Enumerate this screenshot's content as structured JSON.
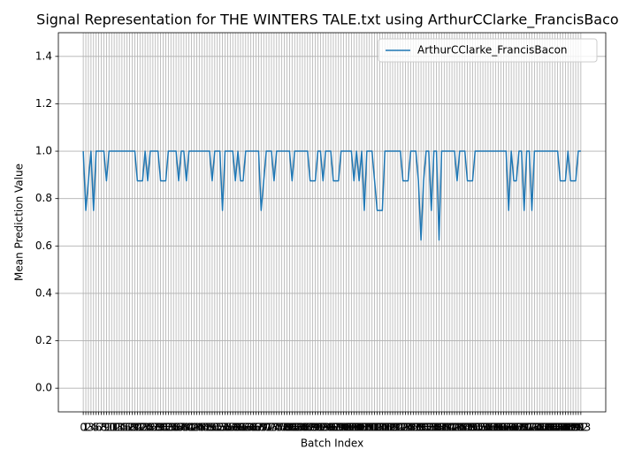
{
  "chart_data": {
    "type": "line",
    "title": "Signal Representation for THE WINTERS TALE.txt using ArthurCClarke_FrancisBacon",
    "xlabel": "Batch Index",
    "ylabel": "Mean Prediction Value",
    "categories": [
      "0",
      "1",
      "2",
      "3",
      "4",
      "5",
      "6",
      "7",
      "8",
      "9",
      "10",
      "11",
      "12",
      "13",
      "14",
      "15",
      "16",
      "17",
      "18",
      "19",
      "20",
      "21",
      "22",
      "23",
      "24",
      "25",
      "26",
      "27",
      "28",
      "29",
      "30",
      "31",
      "32",
      "33",
      "34",
      "35",
      "36",
      "37",
      "38",
      "39",
      "40",
      "41",
      "42",
      "43",
      "44",
      "45",
      "46",
      "47",
      "48",
      "49",
      "50",
      "51",
      "52",
      "53",
      "54",
      "55",
      "56",
      "57",
      "58",
      "59",
      "60",
      "61",
      "62",
      "63",
      "64",
      "65",
      "66",
      "67",
      "68",
      "69",
      "70",
      "71",
      "72",
      "73",
      "74",
      "75",
      "76",
      "77",
      "78",
      "79",
      "80",
      "81",
      "82",
      "83",
      "84",
      "85",
      "86",
      "87",
      "88",
      "89",
      "90",
      "91",
      "92",
      "93",
      "94",
      "95",
      "96",
      "97",
      "98",
      "99",
      "100",
      "101",
      "102",
      "103",
      "104",
      "105",
      "106",
      "107",
      "108",
      "109",
      "110",
      "111",
      "112",
      "113",
      "114",
      "115",
      "116",
      "117",
      "118",
      "119",
      "120",
      "121",
      "122",
      "123",
      "124",
      "125",
      "126",
      "127",
      "128",
      "129",
      "130",
      "131",
      "132",
      "133",
      "134",
      "135",
      "136",
      "137",
      "138",
      "139",
      "140",
      "141",
      "142",
      "143",
      "144",
      "145",
      "146",
      "147",
      "148",
      "149",
      "150",
      "151",
      "152",
      "153",
      "154",
      "155",
      "156",
      "157",
      "158",
      "159",
      "160",
      "161",
      "162",
      "163",
      "164",
      "165",
      "166",
      "167",
      "168",
      "169",
      "170",
      "171",
      "172",
      "173",
      "174",
      "175",
      "176",
      "177",
      "178",
      "179",
      "180",
      "181",
      "182",
      "183",
      "184",
      "185",
      "186",
      "187",
      "188",
      "189",
      "190",
      "191",
      "192",
      "193"
    ],
    "series": [
      {
        "name": "ArthurCClarke_FrancisBacon",
        "color": "#1f77b4",
        "values": [
          1,
          0.75,
          0.875,
          1,
          0.75,
          1,
          1,
          1,
          1,
          0.875,
          1,
          1,
          1,
          1,
          1,
          1,
          1,
          1,
          1,
          1,
          1,
          0.875,
          0.875,
          0.875,
          1,
          0.875,
          1,
          1,
          1,
          1,
          0.875,
          0.875,
          0.875,
          1,
          1,
          1,
          1,
          0.875,
          1,
          1,
          0.875,
          1,
          1,
          1,
          1,
          1,
          1,
          1,
          1,
          1,
          0.875,
          1,
          1,
          1,
          0.75,
          1,
          1,
          1,
          1,
          0.875,
          1,
          0.875,
          0.875,
          1,
          1,
          1,
          1,
          1,
          1,
          0.75,
          0.875,
          1,
          1,
          1,
          0.875,
          1,
          1,
          1,
          1,
          1,
          1,
          0.875,
          1,
          1,
          1,
          1,
          1,
          1,
          0.875,
          0.875,
          0.875,
          1,
          1,
          0.875,
          1,
          1,
          1,
          0.875,
          0.875,
          0.875,
          1,
          1,
          1,
          1,
          1,
          0.875,
          1,
          0.875,
          1,
          0.75,
          1,
          1,
          1,
          0.875,
          0.75,
          0.75,
          0.75,
          1,
          1,
          1,
          1,
          1,
          1,
          1,
          0.875,
          0.875,
          0.875,
          1,
          1,
          1,
          0.875,
          0.625,
          0.875,
          1,
          1,
          0.75,
          1,
          1,
          0.625,
          1,
          1,
          1,
          1,
          1,
          1,
          0.875,
          1,
          1,
          1,
          0.875,
          0.875,
          0.875,
          1,
          1,
          1,
          1,
          1,
          1,
          1,
          1,
          1,
          1,
          1,
          1,
          1,
          0.75,
          1,
          0.875,
          0.875,
          1,
          1,
          0.75,
          1,
          1,
          0.75,
          1,
          1,
          1,
          1,
          1,
          1,
          1,
          1,
          1,
          1,
          0.875,
          0.875,
          0.875,
          1,
          0.875,
          0.875,
          0.875,
          1,
          1
        ]
      }
    ],
    "ylim": [
      -0.1,
      1.5
    ],
    "yticks": [
      {
        "value": 0,
        "label": "0.0"
      },
      {
        "value": 0.2,
        "label": "0.2"
      },
      {
        "value": 0.4,
        "label": "0.4"
      },
      {
        "value": 0.6,
        "label": "0.6"
      },
      {
        "value": 0.8,
        "label": "0.8"
      },
      {
        "value": 1,
        "label": "1.0"
      },
      {
        "value": 1.2,
        "label": "1.2"
      },
      {
        "value": 1.4,
        "label": "1.4"
      }
    ],
    "grid": true,
    "legend": "upper right"
  }
}
